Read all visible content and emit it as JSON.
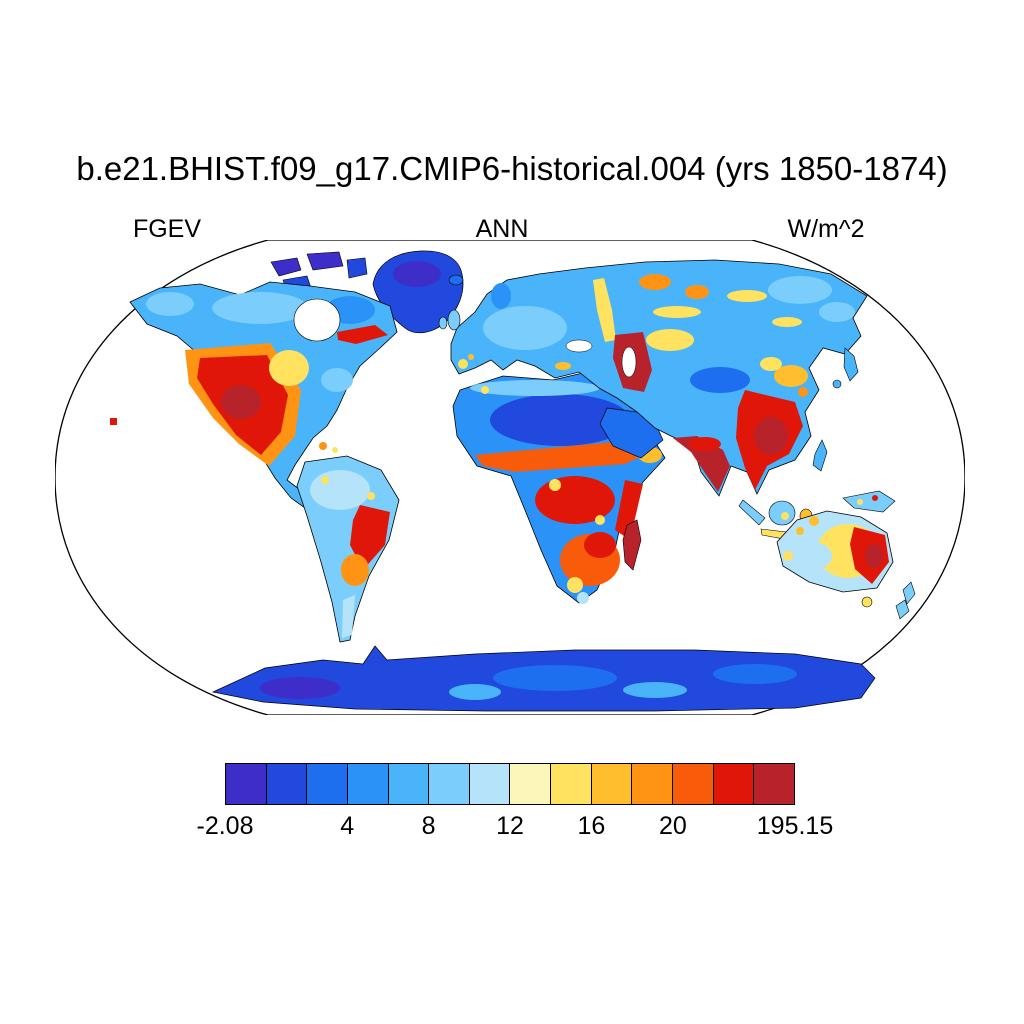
{
  "title": "b.e21.BHIST.f09_g17.CMIP6-historical.004 (yrs 1850-1874)",
  "labels": {
    "variable": "FGEV",
    "season": "ANN",
    "units": "W/m^2"
  },
  "chart_data": {
    "type": "heatmap",
    "subtype": "global filled-grid map, Robinson projection, land-only field with oceans masked white",
    "title": "b.e21.BHIST.f09_g17.CMIP6-historical.004 (yrs 1850-1874)",
    "variable": "FGEV",
    "season": "ANN",
    "units": "W/m^2",
    "value_min": -2.08,
    "value_max": 195.15,
    "colorbar": {
      "n_boxes": 14,
      "orientation": "horizontal",
      "colors": [
        "#3d2ec9",
        "#2149dd",
        "#1e6ef0",
        "#2b93f8",
        "#49b4fa",
        "#7bcdfb",
        "#b5e3fa",
        "#fdf6bb",
        "#ffe25f",
        "#ffbe2e",
        "#ff9414",
        "#f85c0a",
        "#e01708",
        "#b8222a"
      ],
      "tick_values": [
        -2.08,
        4,
        8,
        12,
        16,
        20,
        195.15
      ],
      "ticks": [
        {
          "label": "-2.08",
          "pos": 0
        },
        {
          "label": "4",
          "pos": 0.2143
        },
        {
          "label": "8",
          "pos": 0.3571
        },
        {
          "label": "12",
          "pos": 0.5
        },
        {
          "label": "16",
          "pos": 0.6429
        },
        {
          "label": "20",
          "pos": 0.7857
        },
        {
          "label": "195.15",
          "pos": 1
        }
      ]
    },
    "regions_qualitative": [
      {
        "region": "Greenland, Arctic Canada islands, Antarctica",
        "approx_value": "< 2 W/m^2 (dark blue)"
      },
      {
        "region": "Sahara and Arabian Peninsula",
        "approx_value": "2-8 W/m^2 (blue)"
      },
      {
        "region": "Boreal Canada, Siberia, Europe, eastern US",
        "approx_value": "6-14 W/m^2 (light blue with yellow patches)"
      },
      {
        "region": "Southwest United States and Mexico",
        "approx_value": "> 20 W/m^2 (red)"
      },
      {
        "region": "India, Southeast Asia, southern China",
        "approx_value": "> 20 W/m^2 (dark red)"
      },
      {
        "region": "Sahel, central and southern Africa, Madagascar",
        "approx_value": "> 20 W/m^2 (red)"
      },
      {
        "region": "Eastern Brazil and Gran Chaco",
        "approx_value": "> 20 W/m^2 (red)"
      },
      {
        "region": "Eastern Australia",
        "approx_value": "> 20 W/m^2 (red)"
      },
      {
        "region": "Amazon basin, Indonesia, New Zealand, Japan",
        "approx_value": "8-14 W/m^2 (light blue)"
      }
    ]
  }
}
